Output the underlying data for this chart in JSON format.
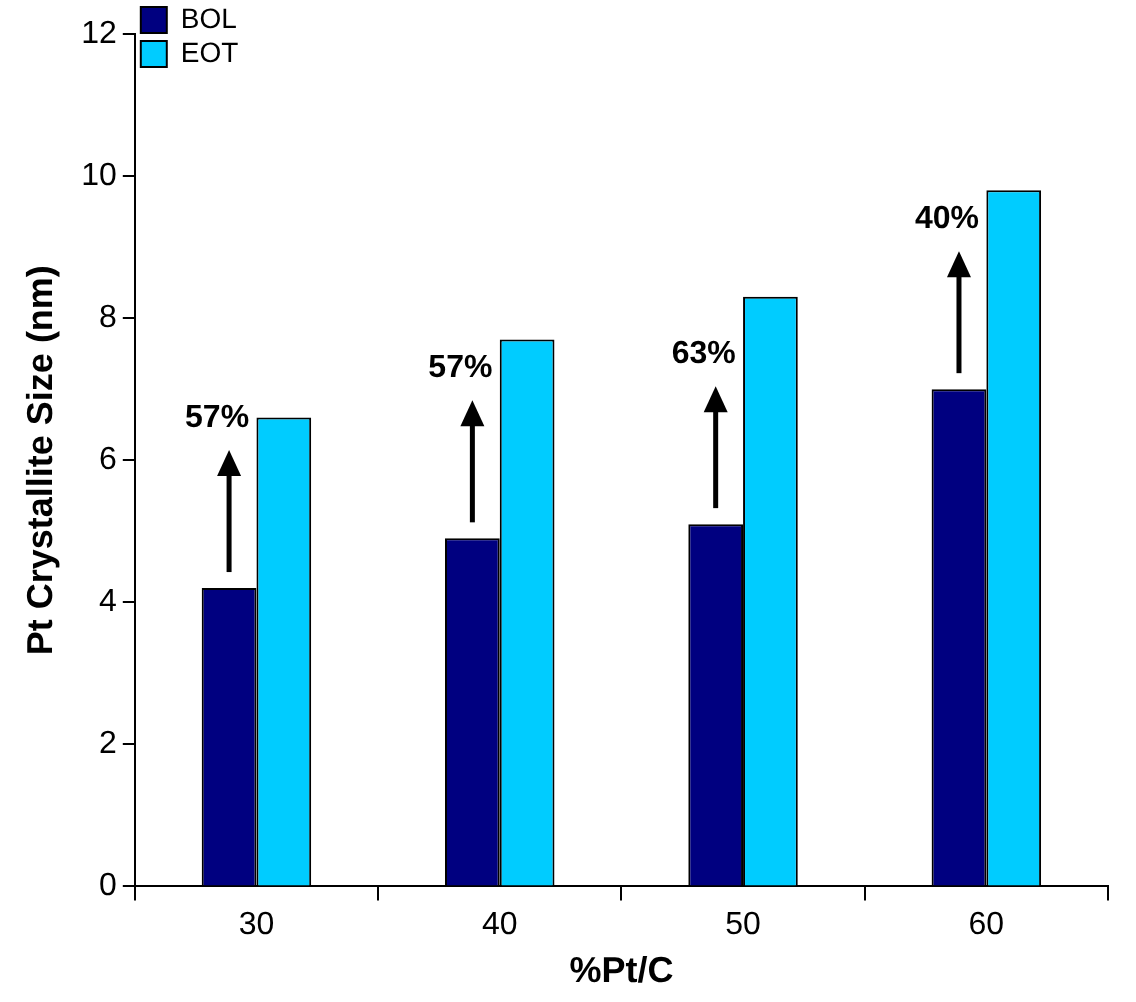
{
  "chart_data": {
    "type": "bar",
    "xlabel": "%Pt/C",
    "ylabel": "Pt Crystallite Size (nm)",
    "categories": [
      "30",
      "40",
      "50",
      "60"
    ],
    "series": [
      {
        "name": "BOL",
        "color": "#000080",
        "values": [
          4.2,
          4.9,
          5.1,
          7.0
        ]
      },
      {
        "name": "EOT",
        "color": "#00ccff",
        "values": [
          6.6,
          7.7,
          8.3,
          9.8
        ]
      }
    ],
    "annotations": [
      "57%",
      "57%",
      "63%",
      "40%"
    ],
    "ylim": [
      0,
      12
    ],
    "yticks": [
      0,
      2,
      4,
      6,
      8,
      10,
      12
    ],
    "grid": false,
    "legend": "top left"
  }
}
